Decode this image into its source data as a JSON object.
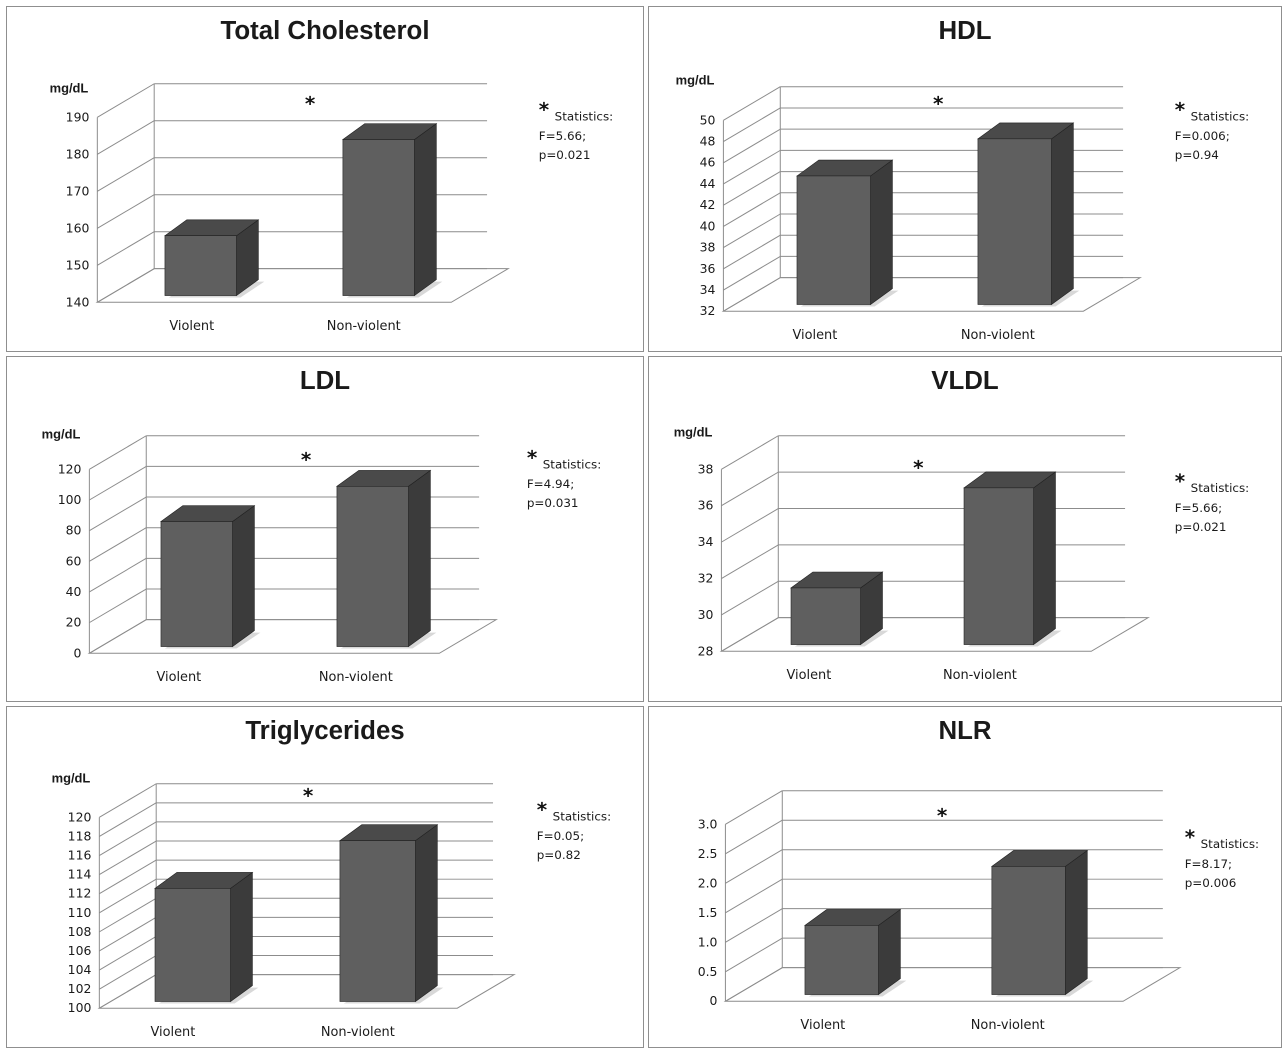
{
  "chart_data": [
    {
      "type": "bar",
      "title": "Total Cholesterol",
      "ylabel": "mg/dL",
      "categories": [
        "Violent",
        "Non-violent"
      ],
      "values": [
        163,
        189
      ],
      "ylim": [
        140,
        190
      ],
      "yticks": [
        "140",
        "150",
        "160",
        "170",
        "180",
        "190"
      ],
      "significance_marker": "*",
      "stats": {
        "label": "Statistics:",
        "lines": [
          "F=5.66;",
          "p=0.021"
        ]
      }
    },
    {
      "type": "bar",
      "title": "HDL",
      "ylabel": "mg/dL",
      "categories": [
        "Violent",
        "Non-violent"
      ],
      "values": [
        46.5,
        50
      ],
      "ylim": [
        32,
        50
      ],
      "yticks": [
        "32",
        "34",
        "36",
        "38",
        "40",
        "42",
        "44",
        "46",
        "48",
        "50"
      ],
      "significance_marker": "*",
      "stats": {
        "label": "Statistics:",
        "lines": [
          "F=0.006;",
          "p=0.94"
        ]
      }
    },
    {
      "type": "bar",
      "title": "LDL",
      "ylabel": "mg/dL",
      "categories": [
        "Violent",
        "Non-violent"
      ],
      "values": [
        98,
        121
      ],
      "ylim": [
        0,
        120
      ],
      "yticks": [
        "0",
        "20",
        "40",
        "60",
        "80",
        "100",
        "120"
      ],
      "significance_marker": "*",
      "stats": {
        "label": "Statistics:",
        "lines": [
          "F=4.94;",
          "p=0.031"
        ]
      }
    },
    {
      "type": "bar",
      "title": "VLDL",
      "ylabel": "mg/dL",
      "categories": [
        "Violent",
        "Non-violent"
      ],
      "values": [
        32.5,
        38
      ],
      "ylim": [
        28,
        38
      ],
      "yticks": [
        "28",
        "30",
        "32",
        "34",
        "36",
        "38"
      ],
      "significance_marker": "*",
      "stats": {
        "label": "Statistics:",
        "lines": [
          "F=5.66;",
          "p=0.021"
        ]
      }
    },
    {
      "type": "bar",
      "title": "Triglycerides",
      "ylabel": "mg/dL",
      "categories": [
        "Violent",
        "Non-violent"
      ],
      "values": [
        114.5,
        119.5
      ],
      "ylim": [
        100,
        120
      ],
      "yticks": [
        "100",
        "102",
        "104",
        "106",
        "108",
        "110",
        "112",
        "114",
        "116",
        "118",
        "120"
      ],
      "significance_marker": "*",
      "stats": {
        "label": "Statistics:",
        "lines": [
          "F=0.05;",
          "p=0.82"
        ]
      }
    },
    {
      "type": "bar",
      "title": "NLR",
      "ylabel": "",
      "categories": [
        "Violent",
        "Non-violent"
      ],
      "values": [
        1.6,
        2.6
      ],
      "ylim": [
        0,
        3.0
      ],
      "yticks": [
        "0",
        "0.5",
        "1.0",
        "1.5",
        "2.0",
        "2.5",
        "3.0"
      ],
      "significance_marker": "*",
      "stats": {
        "label": "Statistics:",
        "lines": [
          "F=8.17;",
          "p=0.006"
        ]
      }
    }
  ],
  "colors": {
    "bar_front": "#5f5f5f",
    "bar_side": "#3b3b3b",
    "bar_top": "#4a4a4a",
    "gridline": "#8c8c8c",
    "panel_border": "#8f8f8f"
  }
}
